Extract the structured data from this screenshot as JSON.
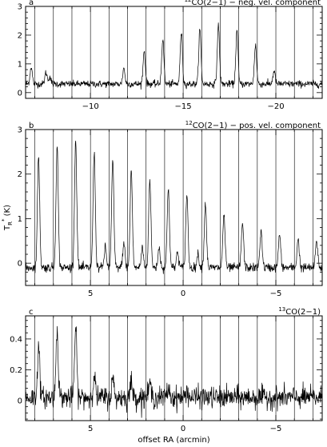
{
  "chart_data": [
    {
      "type": "line",
      "panel_label": "a",
      "title_sup": "12",
      "title": "CO(2−1) − neg. vel. component",
      "xlim": [
        -6.5,
        -22.5
      ],
      "ylim": [
        -0.2,
        3.0
      ],
      "xticks_major": [
        -10,
        -15,
        -20
      ],
      "xtick_labels": [
        "−10",
        "−15",
        "−20"
      ],
      "yticks_major": [
        0,
        1,
        2,
        3
      ],
      "ytick_labels": [
        "0",
        "1",
        "2",
        "3"
      ],
      "vlines": [
        -7.0,
        -8.0,
        -9.0,
        -10.0,
        -11.0,
        -12.0,
        -13.0,
        -14.0,
        -15.0,
        -16.0,
        -17.0,
        -18.0,
        -19.0,
        -20.0,
        -21.0,
        -22.0
      ],
      "baseline": 0.3,
      "noise": 0.06,
      "peaks": [
        {
          "x": -6.8,
          "y": 0.9
        },
        {
          "x": -7.6,
          "y": 0.7
        },
        {
          "x": -7.8,
          "y": 0.55
        },
        {
          "x": -11.8,
          "y": 0.85
        },
        {
          "x": -12.9,
          "y": 1.45
        },
        {
          "x": -13.9,
          "y": 1.85
        },
        {
          "x": -14.9,
          "y": 2.1
        },
        {
          "x": -15.9,
          "y": 2.2
        },
        {
          "x": -16.9,
          "y": 2.35
        },
        {
          "x": -17.9,
          "y": 2.15
        },
        {
          "x": -18.9,
          "y": 1.65
        },
        {
          "x": -19.9,
          "y": 0.75
        }
      ]
    },
    {
      "type": "line",
      "panel_label": "b",
      "title_sup": "12",
      "title": "CO(2−1) − pos. vel. component",
      "xlim": [
        8.5,
        -7.5
      ],
      "ylim": [
        -0.5,
        3.0
      ],
      "xticks_major": [
        5,
        0,
        -5
      ],
      "xtick_labels": [
        "5",
        "0",
        "−5"
      ],
      "yticks_major": [
        0,
        1,
        2,
        3
      ],
      "ytick_labels": [
        "0",
        "1",
        "2",
        "3"
      ],
      "vlines": [
        8.0,
        7.0,
        6.0,
        5.0,
        4.0,
        3.0,
        2.0,
        1.0,
        0.0,
        -1.0,
        -2.0,
        -3.0,
        -4.0,
        -5.0,
        -6.0,
        -7.0
      ],
      "baseline": -0.1,
      "noise": 0.05,
      "peaks": [
        {
          "x": 7.8,
          "y": 2.4
        },
        {
          "x": 6.8,
          "y": 2.65
        },
        {
          "x": 5.8,
          "y": 2.75
        },
        {
          "x": 4.8,
          "y": 2.5
        },
        {
          "x": 4.2,
          "y": 0.35
        },
        {
          "x": 3.8,
          "y": 2.3
        },
        {
          "x": 3.2,
          "y": 0.45
        },
        {
          "x": 2.8,
          "y": 2.1
        },
        {
          "x": 2.2,
          "y": 0.35
        },
        {
          "x": 1.8,
          "y": 1.9
        },
        {
          "x": 1.3,
          "y": 0.35
        },
        {
          "x": 0.8,
          "y": 1.7
        },
        {
          "x": 0.3,
          "y": 0.25
        },
        {
          "x": -0.2,
          "y": 1.55
        },
        {
          "x": -0.8,
          "y": 0.2
        },
        {
          "x": -1.2,
          "y": 1.35
        },
        {
          "x": -2.2,
          "y": 1.1
        },
        {
          "x": -3.2,
          "y": 0.9
        },
        {
          "x": -4.2,
          "y": 0.75
        },
        {
          "x": -5.2,
          "y": 0.65
        },
        {
          "x": -6.2,
          "y": 0.55
        },
        {
          "x": -7.2,
          "y": 0.5
        }
      ]
    },
    {
      "type": "line",
      "panel_label": "c",
      "title_sup": "13",
      "title": "CO(2−1)",
      "xlabel": "offset RA  (arcmin)",
      "xlim": [
        8.5,
        -7.5
      ],
      "ylim": [
        -0.13,
        0.55
      ],
      "xticks_major": [
        5,
        0,
        -5
      ],
      "xtick_labels": [
        "5",
        "0",
        "−5"
      ],
      "yticks_major": [
        0,
        0.2,
        0.4
      ],
      "ytick_labels": [
        "0",
        "0.2",
        "0.4"
      ],
      "vlines": [
        8.0,
        7.0,
        6.0,
        5.0,
        4.0,
        3.0,
        2.0,
        1.0,
        0.0,
        -1.0,
        -2.0,
        -3.0,
        -4.0,
        -5.0,
        -6.0,
        -7.0
      ],
      "baseline": 0.02,
      "noise": 0.035,
      "peaks": [
        {
          "x": 7.8,
          "y": 0.35
        },
        {
          "x": 6.8,
          "y": 0.47
        },
        {
          "x": 5.8,
          "y": 0.47
        },
        {
          "x": 4.8,
          "y": 0.17
        },
        {
          "x": 3.8,
          "y": 0.14
        },
        {
          "x": 2.8,
          "y": 0.12
        },
        {
          "x": 1.8,
          "y": 0.11
        },
        {
          "x": 0.8,
          "y": 0.08
        },
        {
          "x": -0.2,
          "y": 0.07
        }
      ]
    }
  ],
  "shared": {
    "ylabel_main": "T",
    "ylabel_sub": "R",
    "ylabel_sup": "*",
    "ylabel_unit": "(K)"
  }
}
